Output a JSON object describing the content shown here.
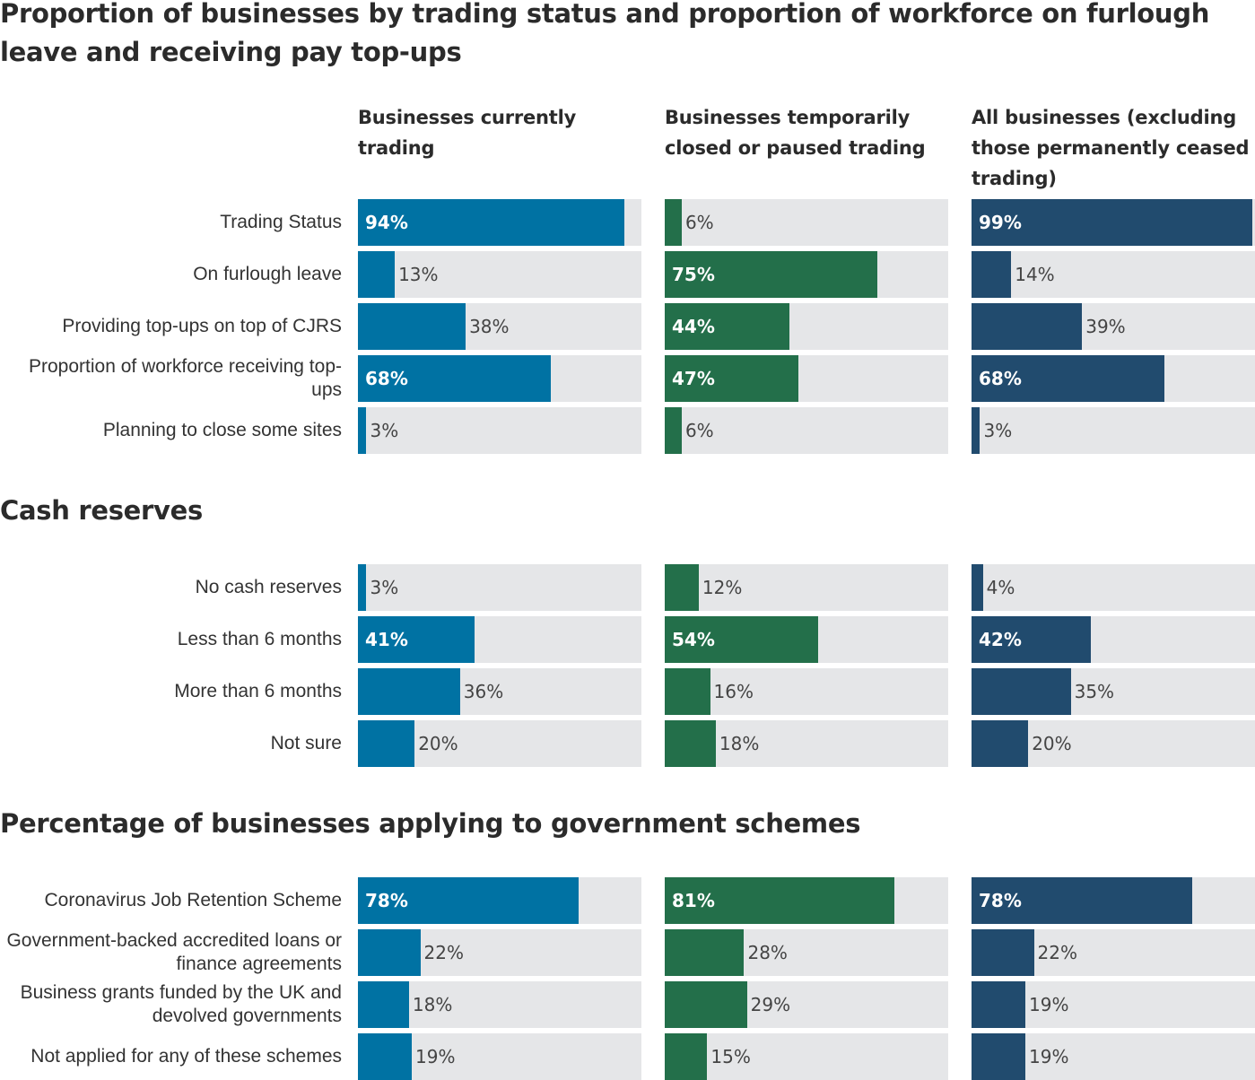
{
  "colors": {
    "currently_trading": "#0072a3",
    "temporarily_closed": "#236f4a",
    "all_businesses": "#214b6e",
    "track": "#e5e6e8"
  },
  "chart_data": [
    {
      "type": "bar",
      "orientation": "horizontal",
      "title": "Proportion of businesses by trading status and proportion of workforce on furlough leave and receiving pay top-ups",
      "unit": "%",
      "xlim": [
        0,
        100
      ],
      "grid": false,
      "categories": [
        "Trading Status",
        "On furlough leave",
        "Providing top-ups on top of CJRS",
        "Proportion of workforce receiving top-ups",
        "Planning to close some sites"
      ],
      "series": [
        {
          "name": "Businesses currently trading",
          "values": [
            94,
            13,
            38,
            68,
            3
          ]
        },
        {
          "name": "Businesses temporarily closed or paused trading",
          "values": [
            6,
            75,
            44,
            47,
            6
          ]
        },
        {
          "name": "All businesses (excluding those permanently ceased trading)",
          "values": [
            99,
            14,
            39,
            68,
            3
          ]
        }
      ]
    },
    {
      "type": "bar",
      "orientation": "horizontal",
      "title": "Cash reserves",
      "unit": "%",
      "xlim": [
        0,
        100
      ],
      "grid": false,
      "categories": [
        "No cash reserves",
        "Less than 6 months",
        "More than 6 months",
        "Not sure"
      ],
      "series": [
        {
          "name": "Businesses currently trading",
          "values": [
            3,
            41,
            36,
            20
          ]
        },
        {
          "name": "Businesses temporarily closed or paused trading",
          "values": [
            12,
            54,
            16,
            18
          ]
        },
        {
          "name": "All businesses (excluding those permanently ceased trading)",
          "values": [
            4,
            42,
            35,
            20
          ]
        }
      ]
    },
    {
      "type": "bar",
      "orientation": "horizontal",
      "title": "Percentage of businesses applying to government schemes",
      "unit": "%",
      "xlim": [
        0,
        100
      ],
      "grid": false,
      "categories": [
        "Coronavirus Job Retention Scheme",
        "Government-backed accredited loans or finance agreements",
        "Business grants funded by the UK and devolved governments",
        "Not applied for any of these schemes"
      ],
      "series": [
        {
          "name": "Businesses currently trading",
          "values": [
            78,
            22,
            18,
            19
          ]
        },
        {
          "name": "Businesses temporarily closed or paused trading",
          "values": [
            81,
            28,
            29,
            15
          ]
        },
        {
          "name": "All businesses (excluding those permanently ceased trading)",
          "values": [
            78,
            22,
            19,
            19
          ]
        }
      ]
    }
  ]
}
